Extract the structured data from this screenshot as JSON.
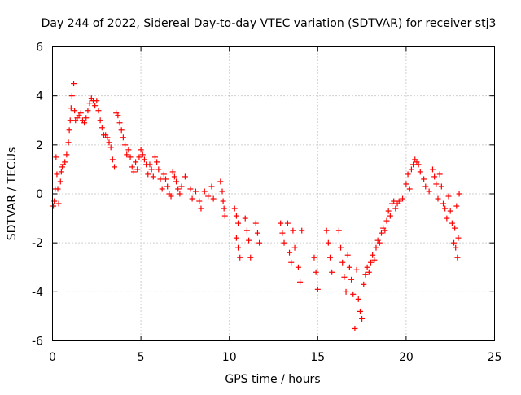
{
  "chart_data": {
    "type": "scatter",
    "title": "Day 244 of 2022, Sidereal Day-to-day VTEC variation (SDTVAR) for receiver stj3",
    "xlabel": "GPS time / hours",
    "ylabel": "SDTVAR / TECUs",
    "xlim": [
      0,
      25
    ],
    "ylim": [
      -6,
      6
    ],
    "xticks": [
      0,
      5,
      10,
      15,
      20,
      25
    ],
    "yticks": [
      -6,
      -4,
      -2,
      0,
      2,
      4,
      6
    ],
    "xtick_labels": [
      "0",
      "5",
      "10",
      "15",
      "20",
      "25"
    ],
    "ytick_labels": [
      "-6",
      "-4",
      "-2",
      "0",
      "2",
      "4",
      "6"
    ],
    "grid": true,
    "marker": "plus",
    "series": [
      {
        "name": "SDTVAR",
        "color": "#ff0000",
        "points": [
          [
            0.05,
            -0.5
          ],
          [
            0.1,
            -0.3
          ],
          [
            0.15,
            0.2
          ],
          [
            0.2,
            1.5
          ],
          [
            0.25,
            0.8
          ],
          [
            0.3,
            0.2
          ],
          [
            0.35,
            -0.4
          ],
          [
            0.45,
            0.5
          ],
          [
            0.5,
            0.9
          ],
          [
            0.55,
            1.1
          ],
          [
            0.6,
            1.2
          ],
          [
            0.7,
            1.3
          ],
          [
            0.8,
            1.6
          ],
          [
            0.9,
            2.1
          ],
          [
            0.95,
            2.6
          ],
          [
            1.0,
            3.0
          ],
          [
            1.05,
            3.5
          ],
          [
            1.1,
            4.0
          ],
          [
            1.2,
            4.5
          ],
          [
            1.25,
            3.4
          ],
          [
            1.3,
            3.0
          ],
          [
            1.4,
            3.1
          ],
          [
            1.5,
            3.2
          ],
          [
            1.6,
            3.3
          ],
          [
            1.7,
            3.0
          ],
          [
            1.8,
            2.9
          ],
          [
            1.9,
            3.1
          ],
          [
            2.0,
            3.4
          ],
          [
            2.1,
            3.7
          ],
          [
            2.2,
            3.9
          ],
          [
            2.3,
            3.8
          ],
          [
            2.4,
            3.6
          ],
          [
            2.5,
            3.8
          ],
          [
            2.6,
            3.4
          ],
          [
            2.7,
            3.0
          ],
          [
            2.8,
            2.7
          ],
          [
            2.9,
            2.4
          ],
          [
            3.0,
            2.4
          ],
          [
            3.1,
            2.3
          ],
          [
            3.2,
            2.1
          ],
          [
            3.3,
            1.9
          ],
          [
            3.4,
            1.4
          ],
          [
            3.5,
            1.1
          ],
          [
            3.6,
            3.3
          ],
          [
            3.7,
            3.2
          ],
          [
            3.8,
            2.9
          ],
          [
            3.9,
            2.6
          ],
          [
            4.0,
            2.3
          ],
          [
            4.1,
            2.0
          ],
          [
            4.2,
            1.6
          ],
          [
            4.3,
            1.8
          ],
          [
            4.4,
            1.5
          ],
          [
            4.5,
            1.1
          ],
          [
            4.6,
            0.9
          ],
          [
            4.7,
            1.3
          ],
          [
            4.8,
            1.0
          ],
          [
            4.9,
            1.5
          ],
          [
            5.0,
            1.8
          ],
          [
            5.1,
            1.6
          ],
          [
            5.2,
            1.4
          ],
          [
            5.3,
            1.2
          ],
          [
            5.4,
            0.8
          ],
          [
            5.5,
            1.2
          ],
          [
            5.6,
            1.0
          ],
          [
            5.7,
            0.7
          ],
          [
            5.8,
            1.5
          ],
          [
            5.9,
            1.3
          ],
          [
            6.0,
            1.0
          ],
          [
            6.1,
            0.6
          ],
          [
            6.2,
            0.2
          ],
          [
            6.3,
            0.8
          ],
          [
            6.4,
            0.6
          ],
          [
            6.5,
            0.3
          ],
          [
            6.6,
            0.0
          ],
          [
            6.7,
            -0.1
          ],
          [
            6.8,
            0.9
          ],
          [
            6.9,
            0.7
          ],
          [
            7.0,
            0.5
          ],
          [
            7.1,
            0.2
          ],
          [
            7.2,
            0.0
          ],
          [
            7.3,
            0.3
          ],
          [
            7.5,
            0.7
          ],
          [
            7.8,
            0.2
          ],
          [
            7.9,
            -0.2
          ],
          [
            8.1,
            0.1
          ],
          [
            8.3,
            -0.3
          ],
          [
            8.4,
            -0.6
          ],
          [
            8.6,
            0.1
          ],
          [
            8.8,
            -0.1
          ],
          [
            9.0,
            0.3
          ],
          [
            9.1,
            -0.2
          ],
          [
            9.5,
            0.5
          ],
          [
            9.6,
            0.1
          ],
          [
            9.65,
            -0.3
          ],
          [
            9.7,
            -0.6
          ],
          [
            9.75,
            -0.9
          ],
          [
            10.3,
            -0.6
          ],
          [
            10.4,
            -0.9
          ],
          [
            10.5,
            -1.2
          ],
          [
            10.4,
            -1.8
          ],
          [
            10.5,
            -2.2
          ],
          [
            10.6,
            -2.6
          ],
          [
            10.9,
            -1.0
          ],
          [
            11.0,
            -1.5
          ],
          [
            11.1,
            -1.9
          ],
          [
            11.2,
            -2.6
          ],
          [
            11.5,
            -1.2
          ],
          [
            11.6,
            -1.6
          ],
          [
            11.7,
            -2.0
          ],
          [
            12.9,
            -1.2
          ],
          [
            13.0,
            -1.6
          ],
          [
            13.1,
            -2.0
          ],
          [
            13.3,
            -1.2
          ],
          [
            13.4,
            -2.4
          ],
          [
            13.5,
            -2.8
          ],
          [
            13.6,
            -1.5
          ],
          [
            13.7,
            -2.2
          ],
          [
            13.9,
            -3.0
          ],
          [
            14.0,
            -3.6
          ],
          [
            14.1,
            -1.5
          ],
          [
            14.8,
            -2.6
          ],
          [
            14.9,
            -3.2
          ],
          [
            15.0,
            -3.9
          ],
          [
            15.5,
            -1.5
          ],
          [
            15.6,
            -2.0
          ],
          [
            15.7,
            -2.6
          ],
          [
            15.8,
            -3.2
          ],
          [
            16.2,
            -1.5
          ],
          [
            16.3,
            -2.2
          ],
          [
            16.4,
            -2.8
          ],
          [
            16.5,
            -3.4
          ],
          [
            16.6,
            -4.0
          ],
          [
            16.7,
            -2.5
          ],
          [
            16.8,
            -3.0
          ],
          [
            16.9,
            -3.5
          ],
          [
            17.0,
            -4.1
          ],
          [
            17.1,
            -5.5
          ],
          [
            17.2,
            -3.1
          ],
          [
            17.3,
            -4.3
          ],
          [
            17.4,
            -4.8
          ],
          [
            17.5,
            -5.1
          ],
          [
            17.6,
            -3.7
          ],
          [
            17.7,
            -3.3
          ],
          [
            17.8,
            -3.0
          ],
          [
            17.9,
            -3.2
          ],
          [
            18.0,
            -2.8
          ],
          [
            18.1,
            -2.5
          ],
          [
            18.2,
            -2.7
          ],
          [
            18.3,
            -2.2
          ],
          [
            18.4,
            -1.9
          ],
          [
            18.5,
            -2.0
          ],
          [
            18.6,
            -1.6
          ],
          [
            18.7,
            -1.4
          ],
          [
            18.8,
            -1.5
          ],
          [
            18.9,
            -1.1
          ],
          [
            19.0,
            -0.7
          ],
          [
            19.1,
            -0.9
          ],
          [
            19.2,
            -0.4
          ],
          [
            19.3,
            -0.3
          ],
          [
            19.4,
            -0.6
          ],
          [
            19.5,
            -0.4
          ],
          [
            19.6,
            -0.3
          ],
          [
            19.8,
            -0.2
          ],
          [
            20.0,
            0.4
          ],
          [
            20.1,
            0.8
          ],
          [
            20.2,
            0.2
          ],
          [
            20.3,
            1.0
          ],
          [
            20.4,
            1.2
          ],
          [
            20.5,
            1.4
          ],
          [
            20.6,
            1.3
          ],
          [
            20.7,
            1.2
          ],
          [
            20.8,
            0.9
          ],
          [
            21.0,
            0.6
          ],
          [
            21.1,
            0.3
          ],
          [
            21.3,
            0.1
          ],
          [
            21.5,
            1.0
          ],
          [
            21.6,
            0.7
          ],
          [
            21.7,
            0.4
          ],
          [
            21.8,
            -0.2
          ],
          [
            21.9,
            0.8
          ],
          [
            22.0,
            0.3
          ],
          [
            22.1,
            -0.4
          ],
          [
            22.2,
            -0.6
          ],
          [
            22.3,
            -1.0
          ],
          [
            22.4,
            -0.1
          ],
          [
            22.5,
            -0.7
          ],
          [
            22.6,
            -1.2
          ],
          [
            22.7,
            -2.0
          ],
          [
            22.8,
            -2.2
          ],
          [
            22.9,
            -2.6
          ],
          [
            22.75,
            -1.4
          ],
          [
            22.85,
            -0.5
          ],
          [
            22.95,
            -1.8
          ],
          [
            23.0,
            0.0
          ]
        ]
      }
    ]
  }
}
